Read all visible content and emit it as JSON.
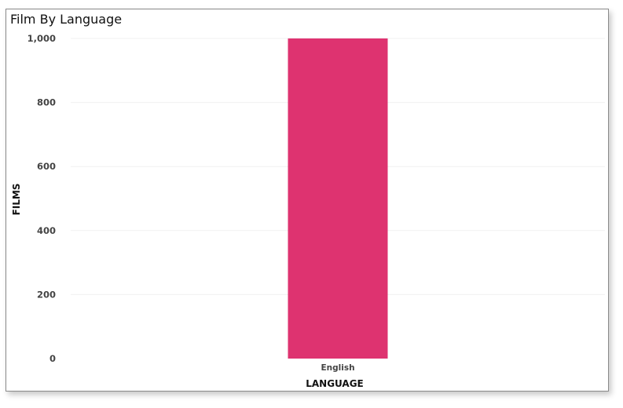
{
  "chart_data": {
    "type": "bar",
    "title": "Film By Language",
    "xlabel": "LANGUAGE",
    "ylabel": "FILMS",
    "categories": [
      "English"
    ],
    "values": [
      1000
    ],
    "ylim": [
      0,
      1000
    ],
    "yticks": [
      0,
      200,
      400,
      600,
      800,
      1000
    ],
    "ytick_labels": [
      "0",
      "200",
      "400",
      "600",
      "800",
      "1,000"
    ],
    "bar_color": "#de3370",
    "grid": true,
    "legend": "none"
  }
}
